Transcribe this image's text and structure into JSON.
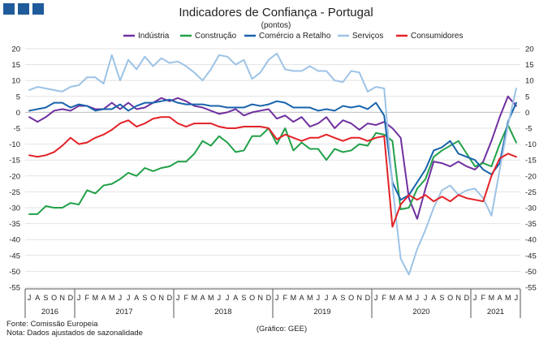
{
  "chart_data": {
    "type": "line",
    "title": "Indicadores de Confiança - Portugal",
    "subtitle": "(pontos)",
    "ylim": [
      -55,
      20
    ],
    "yticks": [
      20,
      15,
      10,
      5,
      0,
      -5,
      -10,
      -15,
      -20,
      -25,
      -30,
      -35,
      -40,
      -45,
      -50,
      -55
    ],
    "months": [
      "J",
      "A",
      "S",
      "O",
      "N",
      "D",
      "J",
      "F",
      "M",
      "A",
      "M",
      "J",
      "J",
      "A",
      "S",
      "O",
      "N",
      "D",
      "J",
      "F",
      "M",
      "A",
      "M",
      "J",
      "J",
      "A",
      "S",
      "O",
      "N",
      "D",
      "J",
      "F",
      "M",
      "A",
      "M",
      "J",
      "J",
      "A",
      "S",
      "O",
      "N",
      "D",
      "J",
      "F",
      "M",
      "A",
      "M",
      "J",
      "J",
      "A",
      "S",
      "O",
      "N",
      "D",
      "J",
      "F",
      "M",
      "A",
      "M",
      "J"
    ],
    "years": [
      {
        "label": "2016",
        "start": 0,
        "end": 5
      },
      {
        "label": "2017",
        "start": 6,
        "end": 17
      },
      {
        "label": "2018",
        "start": 18,
        "end": 29
      },
      {
        "label": "2019",
        "start": 30,
        "end": 41
      },
      {
        "label": "2020",
        "start": 42,
        "end": 53
      },
      {
        "label": "2021",
        "start": 54,
        "end": 59
      }
    ],
    "series": [
      {
        "name": "Indústria",
        "color": "#7030a0",
        "values": [
          -1.5,
          -3,
          -1.5,
          0.5,
          1,
          0.5,
          2,
          2,
          1,
          1,
          3,
          1,
          3,
          1,
          1.5,
          3,
          4.5,
          3.5,
          4.5,
          3.5,
          2,
          1.5,
          0.5,
          -0.5,
          0,
          1,
          -1,
          0,
          0.5,
          1,
          -2,
          -1,
          -3,
          -1.5,
          -4.5,
          -3.5,
          -1.5,
          -5,
          -2.5,
          -3.5,
          -5.5,
          -3.5,
          -4,
          -3,
          -5,
          -8,
          -27,
          -33.5,
          -24,
          -15.5,
          -16,
          -17,
          -15.5,
          -17,
          -18,
          -15.5,
          -9,
          -1.5,
          5,
          2
        ]
      },
      {
        "name": "Construção",
        "color": "#21a048",
        "values": [
          -32,
          -32,
          -29.5,
          -30,
          -30,
          -28.5,
          -29,
          -24.5,
          -25.5,
          -23,
          -22.5,
          -21,
          -19,
          -20,
          -17.5,
          -18.5,
          -17.5,
          -17,
          -15.5,
          -15.5,
          -13,
          -9,
          -10.5,
          -7.5,
          -9.5,
          -12.5,
          -12,
          -7.5,
          -7.5,
          -5,
          -10,
          -5,
          -12,
          -9.5,
          -11.5,
          -11.5,
          -15,
          -11.5,
          -12.5,
          -12,
          -10,
          -10.5,
          -6.5,
          -7,
          -9,
          -30.5,
          -30,
          -24,
          -21,
          -14,
          -12,
          -10.5,
          -9,
          -13,
          -17,
          -16,
          -17,
          -10,
          -4,
          -9.5
        ]
      },
      {
        "name": "Comércio a Retalho",
        "color": "#1763ab",
        "values": [
          0.5,
          1,
          1.5,
          3,
          3,
          1.5,
          2.5,
          2,
          0.5,
          1,
          1,
          2.5,
          0.5,
          2,
          3,
          3,
          3.5,
          4,
          3,
          2.5,
          2.5,
          2.5,
          2,
          2,
          1.5,
          1.5,
          1.5,
          2.5,
          2,
          2.5,
          3.5,
          3,
          1.5,
          1.5,
          1.5,
          0.5,
          1,
          0.5,
          2,
          1.5,
          2,
          1,
          3,
          -1,
          -22,
          -27.5,
          -26,
          -22,
          -18,
          -12,
          -11,
          -9,
          -13,
          -14,
          -15,
          -18,
          -19.5,
          -16,
          -3,
          3
        ]
      },
      {
        "name": "Serviços",
        "color": "#9dc3e6",
        "values": [
          7,
          8,
          7.5,
          7,
          6.5,
          8,
          8.5,
          11,
          11,
          9,
          18,
          10,
          16.5,
          13.5,
          17.5,
          14.5,
          17,
          15.5,
          16,
          14.5,
          12.5,
          10,
          13.5,
          18,
          17.5,
          15,
          16.5,
          10.5,
          12.5,
          16.5,
          18.5,
          13.5,
          13,
          13,
          14.5,
          13,
          13,
          10,
          9.5,
          13,
          12.5,
          6.5,
          8,
          7.5,
          -23,
          -46,
          -51,
          -43,
          -37,
          -30,
          -24.5,
          -23,
          -26,
          -24.5,
          -24,
          -27,
          -32.5,
          -18,
          -4,
          7.5
        ]
      },
      {
        "name": "Consumidores",
        "color": "#e32227",
        "values": [
          -13.5,
          -14,
          -13.5,
          -12.5,
          -10.5,
          -8,
          -10,
          -9.5,
          -8,
          -7,
          -5.5,
          -3.5,
          -2.5,
          -4.5,
          -3.5,
          -2,
          -1.5,
          -1.5,
          -3.5,
          -4.5,
          -3.5,
          -3.5,
          -3.5,
          -4.5,
          -5,
          -5,
          -4.5,
          -4.5,
          -4.5,
          -5,
          -8.5,
          -7,
          -8,
          -9,
          -8,
          -8,
          -7,
          -8,
          -9,
          -8,
          -8,
          -9,
          -8,
          -7.5,
          -36,
          -29,
          -26,
          -27.5,
          -26,
          -28,
          -26.5,
          -28,
          -26,
          -27,
          -27.5,
          -28,
          -20,
          -14.5,
          -13,
          -14
        ]
      }
    ]
  },
  "footer": {
    "source": "Fonte: Comissão Europeia",
    "note": "Nota: Dados ajustados de sazonalidade",
    "credit": "(Gráfico: GEE)"
  }
}
